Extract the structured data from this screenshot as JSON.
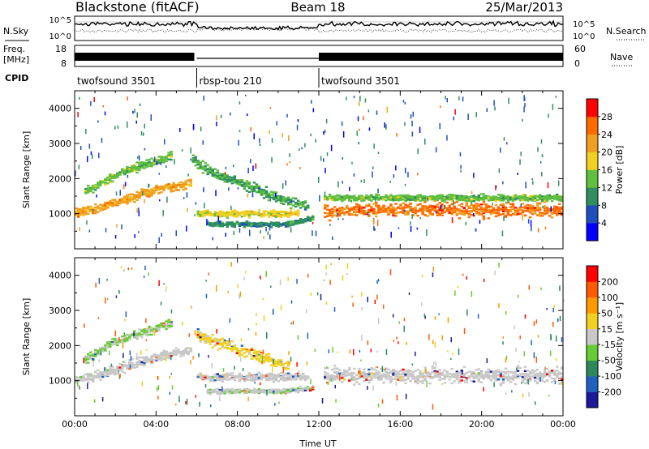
{
  "header": {
    "station": "Blackstone (fitACF)",
    "beam": "Beam 18",
    "date": "25/Mar/2013"
  },
  "top_panels": {
    "nsky_label": "N.Sky",
    "nsky_ticks": [
      "10^5",
      "10^0"
    ],
    "nsearch_label": "N.Search",
    "nsearch_ticks": [
      "10^5",
      "10^0"
    ],
    "freq_label": "Freq.",
    "freq_unit": "[MHz]",
    "freq_ticks": [
      "18",
      "8"
    ],
    "nave_label": "Nave",
    "nave_ticks": [
      "60",
      "0"
    ],
    "cpid_label": "CPID",
    "cpid_segments": [
      {
        "label": "twofsound 3501",
        "start_hour": 0,
        "end_hour": 6
      },
      {
        "label": "rbsp-tou 210",
        "start_hour": 6,
        "end_hour": 12
      },
      {
        "label": "twofsound 3501",
        "start_hour": 12,
        "end_hour": 24
      }
    ]
  },
  "colors": {
    "power": [
      "#0000ff",
      "#1f4fbf",
      "#2f8f5f",
      "#5fbf3f",
      "#f0d020",
      "#f0a020",
      "#ff6a00",
      "#ff0000"
    ],
    "velocity": [
      "#1a1a9a",
      "#2060c0",
      "#2a8a5a",
      "#66cc33",
      "#c8c8c8",
      "#f0d020",
      "#ff9900",
      "#ff5a00",
      "#ff0000"
    ]
  },
  "chart_data": [
    {
      "type": "heatmap",
      "name": "power-panel",
      "xlabel": "",
      "ylabel": "Slant Range [km]",
      "xlim": [
        0,
        24
      ],
      "ylim": [
        0,
        4500
      ],
      "yticks": [
        "1000",
        "2000",
        "3000",
        "4000"
      ],
      "colorbar_label": "Power [dB]",
      "colorbar_ticks": [
        "4",
        "8",
        "12",
        "16",
        "20",
        "24",
        "28"
      ],
      "colorbar_range": [
        0,
        32
      ],
      "bands": [
        {
          "x": [
            0.0,
            1.5,
            3.0,
            4.5,
            5.8
          ],
          "y": [
            1000,
            1200,
            1500,
            1750,
            1850
          ],
          "width": 180,
          "value": 22
        },
        {
          "x": [
            0.5,
            2.0,
            3.5,
            4.8
          ],
          "y": [
            1600,
            2100,
            2400,
            2650
          ],
          "width": 160,
          "value": 14
        },
        {
          "x": [
            5.8,
            7.0,
            8.5,
            10.0,
            11.5
          ],
          "y": [
            2500,
            2100,
            1800,
            1450,
            1150
          ],
          "width": 220,
          "value": 12
        },
        {
          "x": [
            6.0,
            7.5,
            9.0,
            11.0
          ],
          "y": [
            1000,
            1000,
            1000,
            1000
          ],
          "width": 130,
          "value": 18
        },
        {
          "x": [
            6.5,
            8.5,
            10.5,
            11.8
          ],
          "y": [
            700,
            700,
            700,
            900
          ],
          "width": 100,
          "value": 10
        },
        {
          "x": [
            12.2,
            14.0,
            16.0,
            18.0,
            20.0,
            22.0,
            24.0
          ],
          "y": [
            1050,
            1100,
            1120,
            1120,
            1100,
            1100,
            1100
          ],
          "width": 280,
          "value": 25
        },
        {
          "x": [
            12.2,
            15.0,
            18.0,
            21.0,
            24.0
          ],
          "y": [
            1450,
            1450,
            1450,
            1450,
            1450
          ],
          "width": 120,
          "value": 14
        }
      ]
    },
    {
      "type": "heatmap",
      "name": "velocity-panel",
      "xlabel": "Time UT",
      "ylabel": "Slant Range [km]",
      "xlim": [
        0,
        24
      ],
      "ylim": [
        0,
        4500
      ],
      "xticks": [
        "00:00",
        "04:00",
        "08:00",
        "12:00",
        "16:00",
        "20:00",
        "00:00"
      ],
      "yticks": [
        "1000",
        "2000",
        "3000",
        "4000"
      ],
      "colorbar_label": "Velocity [m s⁻¹]",
      "colorbar_ticks": [
        "200",
        "100",
        "50",
        "15",
        "-15",
        "-50",
        "-100",
        "-200"
      ],
      "colorbar_range": [
        -250,
        250
      ],
      "bands": [
        {
          "x": [
            0.0,
            1.5,
            3.0,
            4.5,
            5.8
          ],
          "y": [
            1000,
            1200,
            1500,
            1750,
            1850
          ],
          "width": 200,
          "value": 0
        },
        {
          "x": [
            0.5,
            2.0,
            3.5,
            4.8
          ],
          "y": [
            1600,
            2100,
            2400,
            2650
          ],
          "width": 160,
          "value": -30
        },
        {
          "x": [
            6.0,
            7.5,
            9.0,
            10.5
          ],
          "y": [
            2300,
            2000,
            1700,
            1400
          ],
          "width": 220,
          "value": 40
        },
        {
          "x": [
            6.0,
            8.0,
            10.0,
            11.5
          ],
          "y": [
            1100,
            1100,
            1100,
            1100
          ],
          "width": 160,
          "value": 0
        },
        {
          "x": [
            6.5,
            8.5,
            10.5,
            11.8
          ],
          "y": [
            700,
            700,
            700,
            800
          ],
          "width": 100,
          "value": -20
        },
        {
          "x": [
            12.2,
            15.0,
            18.0,
            21.0,
            24.0
          ],
          "y": [
            1150,
            1150,
            1150,
            1150,
            1150
          ],
          "width": 300,
          "value": 0
        }
      ]
    }
  ]
}
